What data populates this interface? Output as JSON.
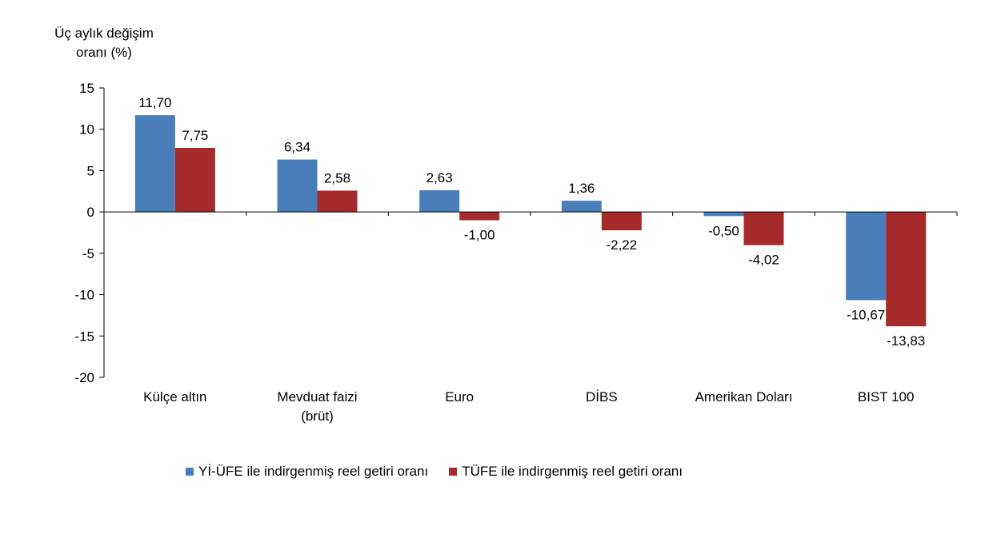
{
  "chart_data": {
    "type": "bar",
    "ylabel_lines": [
      "Üç aylık değişim",
      "oranı (%)"
    ],
    "categories": [
      [
        "Külçe altın"
      ],
      [
        "Mevduat faizi",
        "(brüt)"
      ],
      [
        "Euro"
      ],
      [
        "DİBS"
      ],
      [
        "Amerikan Doları"
      ],
      [
        "BIST 100"
      ]
    ],
    "series": [
      {
        "name": "Yİ-ÜFE ile indirgenmiş reel getiri oranı",
        "color": "#4A7EBB",
        "values": [
          11.7,
          6.34,
          2.63,
          1.36,
          -0.5,
          -10.67
        ],
        "labels": [
          "11,70",
          "6,34",
          "2,63",
          "1,36",
          "-0,50",
          "-10,67"
        ]
      },
      {
        "name": "TÜFE ile indirgenmiş reel getiri oranı",
        "color": "#A52A2A",
        "values": [
          7.75,
          2.58,
          -1.0,
          -2.22,
          -4.02,
          -13.83
        ],
        "labels": [
          "7,75",
          "2,58",
          "-1,00",
          "-2,22",
          "-4,02",
          "-13,83"
        ]
      }
    ],
    "ylim": [
      -20,
      15
    ],
    "yticks": [
      15,
      10,
      5,
      0,
      -5,
      -10,
      -15,
      -20
    ],
    "grid": false,
    "legend_position": "bottom"
  }
}
